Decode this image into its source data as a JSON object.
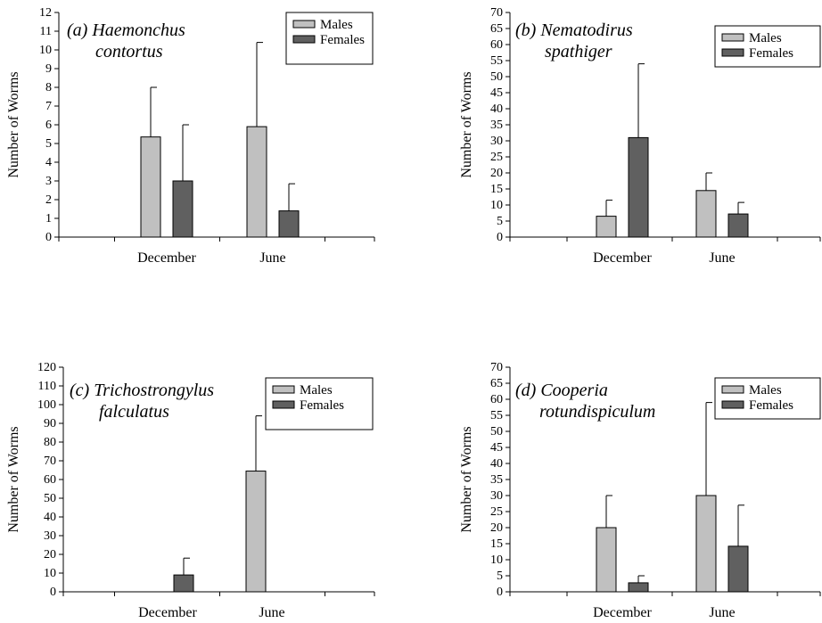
{
  "figure": {
    "background": "#ffffff"
  },
  "colors": {
    "males": "#c0c0c0",
    "females": "#606060",
    "axis": "#000000"
  },
  "chart_data": [
    {
      "id": "a",
      "type": "bar",
      "title_lines": [
        "(a) Haemonchus",
        "contortus"
      ],
      "xlabel": "",
      "ylabel": "Number of Worms",
      "categories": [
        "December",
        "June"
      ],
      "series": [
        {
          "name": "Males",
          "values": [
            5.35,
            5.9
          ],
          "errors": [
            2.65,
            4.5
          ]
        },
        {
          "name": "Females",
          "values": [
            3.0,
            1.4
          ],
          "errors": [
            3.0,
            1.45
          ]
        }
      ],
      "ylim": [
        0,
        12
      ],
      "yticks": [
        0,
        1,
        2,
        3,
        4,
        5,
        6,
        7,
        8,
        9,
        10,
        11,
        12
      ],
      "legend": "top-right",
      "grid": false
    },
    {
      "id": "b",
      "type": "bar",
      "title_lines": [
        "(b) Nematodirus",
        "spathiger"
      ],
      "xlabel": "",
      "ylabel": "Number of Worms",
      "categories": [
        "December",
        "June"
      ],
      "series": [
        {
          "name": "Males",
          "values": [
            6.5,
            14.5
          ],
          "errors": [
            5.0,
            5.5
          ]
        },
        {
          "name": "Females",
          "values": [
            31.0,
            7.2
          ],
          "errors": [
            23.0,
            3.6
          ]
        }
      ],
      "ylim": [
        0,
        70
      ],
      "yticks": [
        0,
        5,
        10,
        15,
        20,
        25,
        30,
        35,
        40,
        45,
        50,
        55,
        60,
        65,
        70
      ],
      "legend": "top-right",
      "grid": false
    },
    {
      "id": "c",
      "type": "bar",
      "title_lines": [
        "(c) Trichostrongylus",
        "falculatus"
      ],
      "xlabel": "",
      "ylabel": "Number of Worms",
      "categories": [
        "December",
        "June"
      ],
      "series": [
        {
          "name": "Males",
          "values": [
            0,
            64.5
          ],
          "errors": [
            0,
            29.5
          ]
        },
        {
          "name": "Females",
          "values": [
            9.0,
            0
          ],
          "errors": [
            9.0,
            0
          ]
        }
      ],
      "ylim": [
        0,
        120
      ],
      "yticks": [
        0,
        10,
        20,
        30,
        40,
        50,
        60,
        70,
        80,
        90,
        100,
        110,
        120
      ],
      "legend": "top-right",
      "grid": false
    },
    {
      "id": "d",
      "type": "bar",
      "title_lines": [
        "(d) Cooperia",
        "rotundispiculum"
      ],
      "xlabel": "",
      "ylabel": "Number of Worms",
      "categories": [
        "December",
        "June"
      ],
      "series": [
        {
          "name": "Males",
          "values": [
            20.0,
            30.0
          ],
          "errors": [
            10.0,
            29.0
          ]
        },
        {
          "name": "Females",
          "values": [
            2.8,
            14.2
          ],
          "errors": [
            2.2,
            12.8
          ]
        }
      ],
      "ylim": [
        0,
        70
      ],
      "yticks": [
        0,
        5,
        10,
        15,
        20,
        25,
        30,
        35,
        40,
        45,
        50,
        55,
        60,
        65,
        70
      ],
      "legend": "top-right",
      "grid": false
    }
  ]
}
